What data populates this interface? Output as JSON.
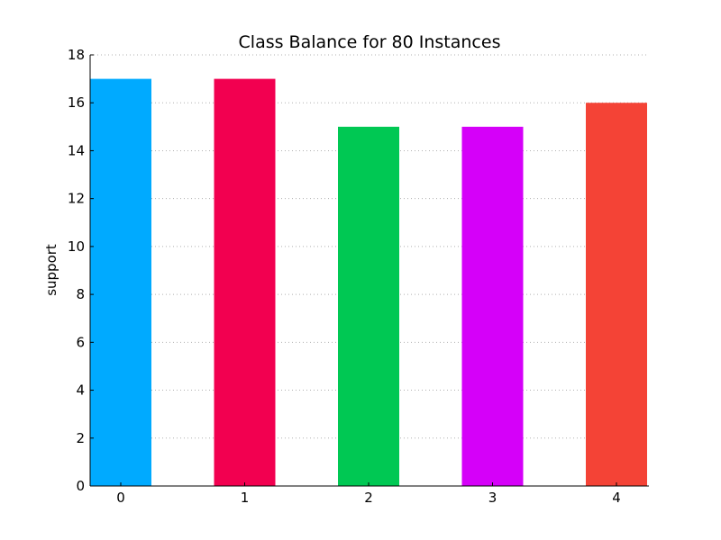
{
  "chart_data": {
    "type": "bar",
    "title": "Class Balance for 80 Instances",
    "xlabel": "",
    "ylabel": "support",
    "categories": [
      "0",
      "1",
      "2",
      "3",
      "4"
    ],
    "values": [
      17,
      17,
      15,
      15,
      16
    ],
    "colors": [
      "#00aaff",
      "#f20050",
      "#00c853",
      "#d500f9",
      "#f44336"
    ],
    "ylim": [
      0,
      18
    ],
    "yticks": [
      0,
      2,
      4,
      6,
      8,
      10,
      12,
      14,
      16,
      18
    ],
    "grid": "y-dotted",
    "legend": "none"
  }
}
